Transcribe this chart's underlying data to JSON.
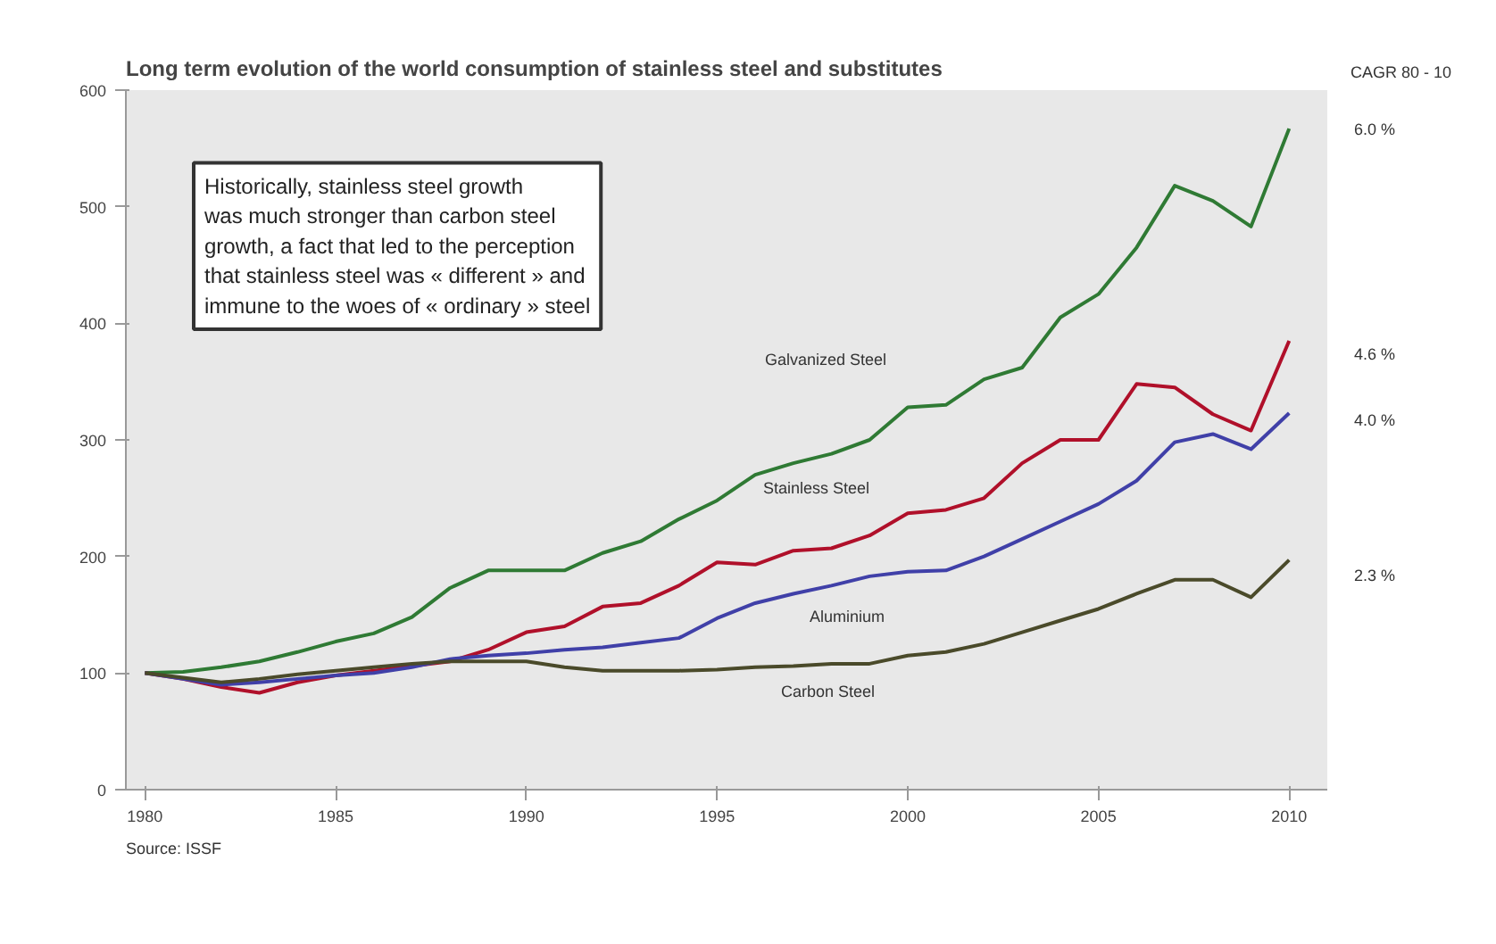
{
  "chart_data": {
    "type": "line",
    "title": "Long term evolution of the world consumption of stainless steel and substitutes",
    "x": [
      1980,
      1981,
      1982,
      1983,
      1984,
      1985,
      1986,
      1987,
      1988,
      1989,
      1990,
      1991,
      1992,
      1993,
      1994,
      1995,
      1996,
      1997,
      1998,
      1999,
      2000,
      2001,
      2002,
      2003,
      2004,
      2005,
      2006,
      2007,
      2008,
      2009,
      2010
    ],
    "series": [
      {
        "color": "#2f7a34",
        "values": [
          100,
          101,
          105,
          110,
          118,
          127,
          134,
          148,
          173,
          188,
          188,
          188,
          203,
          213,
          232,
          248,
          270,
          280,
          288,
          300,
          328,
          330,
          352,
          362,
          405,
          425,
          465,
          518,
          505,
          483,
          567
        ]
      },
      {
        "color": "#b0102a",
        "values": [
          100,
          95,
          88,
          83,
          92,
          98,
          102,
          106,
          110,
          120,
          135,
          140,
          157,
          160,
          175,
          195,
          193,
          205,
          207,
          218,
          237,
          240,
          250,
          280,
          300,
          300,
          348,
          345,
          322,
          308,
          385
        ]
      },
      {
        "color": "#4040a8",
        "values": [
          100,
          95,
          90,
          92,
          95,
          98,
          100,
          105,
          112,
          115,
          117,
          120,
          122,
          126,
          130,
          147,
          160,
          168,
          175,
          183,
          187,
          188,
          200,
          215,
          230,
          245,
          265,
          298,
          305,
          292,
          323
        ]
      },
      {
        "color": "#4a4a2a",
        "values": [
          100,
          96,
          92,
          95,
          99,
          102,
          105,
          108,
          110,
          110,
          110,
          105,
          102,
          102,
          102,
          103,
          105,
          106,
          108,
          108,
          115,
          118,
          125,
          135,
          145,
          155,
          168,
          180,
          180,
          165,
          197
        ]
      }
    ],
    "xlim": [
      1979.5,
      2011
    ],
    "ylim": [
      0,
      600
    ],
    "xticks": [
      1980,
      1985,
      1990,
      1995,
      2000,
      2005,
      2010
    ],
    "yticks": [
      0,
      100,
      200,
      300,
      400,
      500,
      600
    ],
    "marker": "none",
    "line_style": "solid",
    "annotations": [
      "Historically, stainless steel growth\nwas much stronger than carbon steel\ngrowth, a fact that led to the perception\nthat stainless steel was « different » and\nimmune to the woes of « ordinary » steel",
      "CAGR 80 - 10",
      "Source: ISSF",
      "Galvanized Steel",
      "Stainless Steel",
      "Aluminium",
      "Carbon Steel",
      "6.0 %",
      "4.6 %",
      "4.0 %",
      "2.3 %"
    ]
  }
}
